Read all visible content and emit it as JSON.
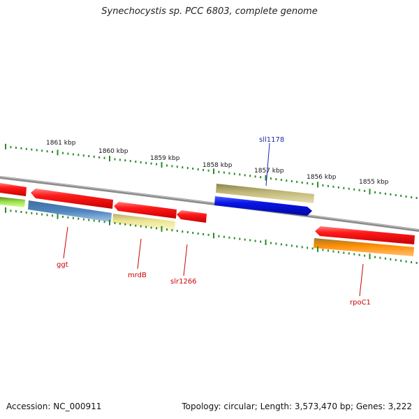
{
  "title": "Synechocystis sp. PCC 6803, complete genome",
  "footer": {
    "accession": "Accession: NC_000911",
    "topology": "Topology: circular; Length: 3,573,470 bp; Genes: 3,222"
  },
  "scale_labels": [
    "1861 kbp",
    "1860 kbp",
    "1859 kbp",
    "1858 kbp",
    "1857 kbp",
    "1856 kbp",
    "1855 kbp"
  ],
  "genes": [
    {
      "name": "ggt",
      "strand": "reverse",
      "color": "#ff1a1a",
      "label_color": "#cc0000"
    },
    {
      "name": "mrdB",
      "strand": "reverse",
      "color": "#ff1a1a",
      "label_color": "#cc0000"
    },
    {
      "name": "slr1266",
      "strand": "reverse",
      "color": "#ff1a1a",
      "label_color": "#cc0000"
    },
    {
      "name": "sll1178",
      "strand": "forward",
      "color": "#0a14e6",
      "label_color": "#1a2bb0"
    },
    {
      "name": "rpoC1",
      "strand": "reverse",
      "color": "#ff1a1a",
      "label_color": "#cc0000"
    }
  ],
  "colors": {
    "backbone": "#8a8a8a",
    "tick": "#2a8a2a",
    "red_gene": "#ff1a1a",
    "blue_gene": "#0a14e6",
    "steel_feature": "#4f86c0",
    "khaki_feature": "#c2b87a",
    "pale_yellow_feature": "#ede694",
    "orange_feature": "#ff9a1a",
    "lime_feature": "#9be04a"
  }
}
